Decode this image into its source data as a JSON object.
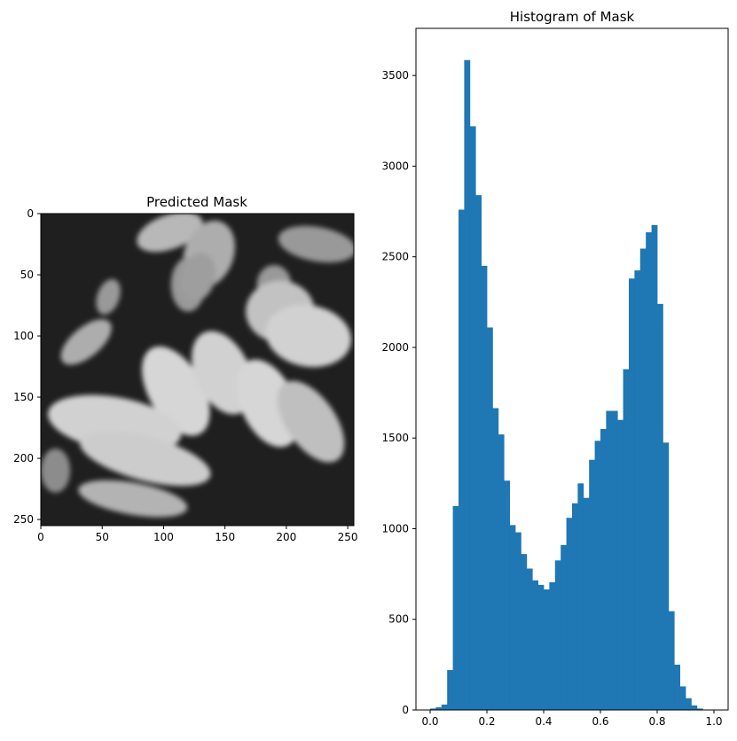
{
  "chart_data": [
    {
      "type": "image",
      "title": "Predicted Mask",
      "colormap": "gray",
      "xlim": [
        0,
        255
      ],
      "ylim": [
        255,
        0
      ],
      "xticks": [
        0,
        50,
        100,
        150,
        200,
        250
      ],
      "yticks": [
        0,
        50,
        100,
        150,
        200,
        250
      ],
      "xtick_labels": [
        "0",
        "50",
        "100",
        "150",
        "200",
        "250"
      ],
      "ytick_labels": [
        "0",
        "50",
        "100",
        "150",
        "200",
        "250"
      ],
      "background_color": "#1f1f1f",
      "blobs": [
        {
          "cx": 105,
          "cy": 15,
          "rx": 28,
          "ry": 14,
          "angle": -20,
          "level": 0.72
        },
        {
          "cx": 137,
          "cy": 33,
          "rx": 20,
          "ry": 28,
          "angle": 20,
          "level": 0.68
        },
        {
          "cx": 225,
          "cy": 25,
          "rx": 32,
          "ry": 14,
          "angle": 10,
          "level": 0.6
        },
        {
          "cx": 55,
          "cy": 68,
          "rx": 9,
          "ry": 15,
          "angle": 20,
          "level": 0.6
        },
        {
          "cx": 120,
          "cy": 58,
          "rx": 14,
          "ry": 22,
          "angle": 0,
          "level": 0.6
        },
        {
          "cx": 128,
          "cy": 52,
          "rx": 14,
          "ry": 20,
          "angle": 15,
          "level": 0.62
        },
        {
          "cx": 190,
          "cy": 58,
          "rx": 14,
          "ry": 16,
          "angle": 0,
          "level": 0.6
        },
        {
          "cx": 37,
          "cy": 105,
          "rx": 12,
          "ry": 25,
          "angle": 50,
          "level": 0.68
        },
        {
          "cx": 195,
          "cy": 80,
          "rx": 28,
          "ry": 25,
          "angle": 0,
          "level": 0.76
        },
        {
          "cx": 218,
          "cy": 100,
          "rx": 35,
          "ry": 25,
          "angle": 10,
          "level": 0.82
        },
        {
          "cx": 110,
          "cy": 145,
          "rx": 22,
          "ry": 40,
          "angle": -30,
          "level": 0.84
        },
        {
          "cx": 148,
          "cy": 130,
          "rx": 22,
          "ry": 36,
          "angle": -25,
          "level": 0.82
        },
        {
          "cx": 185,
          "cy": 155,
          "rx": 22,
          "ry": 38,
          "angle": -25,
          "level": 0.84
        },
        {
          "cx": 60,
          "cy": 172,
          "rx": 55,
          "ry": 22,
          "angle": 10,
          "level": 0.82
        },
        {
          "cx": 85,
          "cy": 200,
          "rx": 55,
          "ry": 18,
          "angle": 15,
          "level": 0.8
        },
        {
          "cx": 75,
          "cy": 233,
          "rx": 45,
          "ry": 13,
          "angle": 10,
          "level": 0.7
        },
        {
          "cx": 220,
          "cy": 170,
          "rx": 20,
          "ry": 38,
          "angle": -35,
          "level": 0.75
        },
        {
          "cx": 12,
          "cy": 210,
          "rx": 12,
          "ry": 18,
          "angle": 0,
          "level": 0.55
        }
      ]
    },
    {
      "type": "bar",
      "title": "Histogram of Mask",
      "color": "#1f77b4",
      "bin_start": 0.0,
      "bin_width": 0.02,
      "values": [
        8,
        15,
        30,
        220,
        1125,
        2760,
        3585,
        3220,
        2840,
        2450,
        2110,
        1665,
        1520,
        1265,
        1020,
        980,
        860,
        780,
        715,
        690,
        665,
        705,
        825,
        910,
        1060,
        1140,
        1250,
        1170,
        1380,
        1485,
        1550,
        1650,
        1650,
        1600,
        1880,
        2380,
        2425,
        2545,
        2635,
        2675,
        2240,
        1475,
        545,
        250,
        130,
        65,
        25,
        8
      ],
      "xlim": [
        -0.05,
        1.05
      ],
      "ylim": [
        0,
        3760
      ],
      "xticks": [
        0.0,
        0.2,
        0.4,
        0.6,
        0.8,
        1.0
      ],
      "yticks": [
        0,
        500,
        1000,
        1500,
        2000,
        2500,
        3000,
        3500
      ],
      "xtick_labels": [
        "0.0",
        "0.2",
        "0.4",
        "0.6",
        "0.8",
        "1.0"
      ],
      "ytick_labels": [
        "0",
        "500",
        "1000",
        "1500",
        "2000",
        "2500",
        "3000",
        "3500"
      ]
    }
  ]
}
